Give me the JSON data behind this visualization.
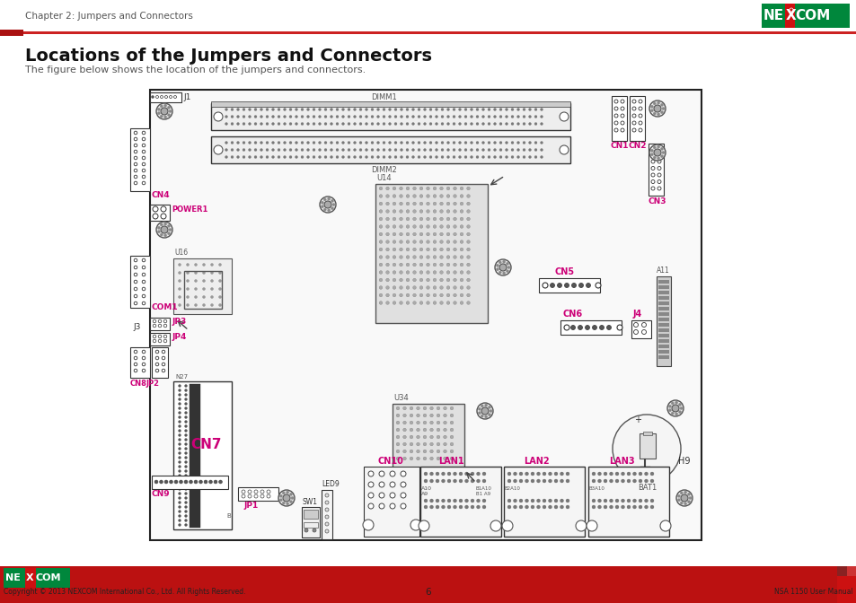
{
  "page_title": "Chapter 2: Jumpers and Connectors",
  "section_title": "Locations of the Jumpers and Connectors",
  "section_subtitle": "The figure below shows the location of the jumpers and connectors.",
  "footer_copyright": "Copyright © 2013 NEXCOM International Co., Ltd. All Rights Reserved.",
  "footer_page": "6",
  "footer_right": "NSA 1150 User Manual",
  "bg_color": "#ffffff",
  "header_line_color": "#cc2222",
  "header_rect_color": "#aa1111",
  "footer_bar_color": "#bb1111",
  "label_color": "#cc0077",
  "nexcom_green": "#00873c"
}
